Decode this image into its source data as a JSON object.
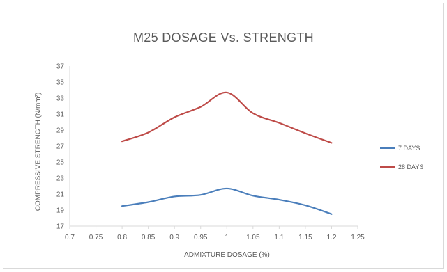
{
  "chart_data": {
    "type": "line",
    "title": "M25 DOSAGE Vs. STRENGTH",
    "xlabel": "ADMIXTURE DOSAGE (%)",
    "ylabel": "COMPRESSIVE STRENGTH (N/mm²)",
    "xlim": [
      0.7,
      1.25
    ],
    "ylim": [
      17,
      37
    ],
    "x_ticks": [
      "0.7",
      "0.75",
      "0.8",
      "0.85",
      "0.9",
      "0.95",
      "1",
      "1.05",
      "1.1",
      "1.15",
      "1.2",
      "1.25"
    ],
    "y_ticks": [
      "17",
      "19",
      "21",
      "23",
      "25",
      "27",
      "29",
      "31",
      "33",
      "35",
      "37"
    ],
    "x": [
      0.8,
      0.85,
      0.9,
      0.95,
      1.0,
      1.05,
      1.1,
      1.15,
      1.2
    ],
    "series": [
      {
        "name": "7 DAYS",
        "color": "#4a7ebb",
        "values": [
          19.5,
          20.0,
          20.7,
          20.9,
          21.7,
          20.8,
          20.3,
          19.6,
          18.5
        ]
      },
      {
        "name": "28 DAYS",
        "color": "#be4b48",
        "values": [
          27.6,
          28.7,
          30.6,
          31.9,
          33.7,
          31.1,
          29.9,
          28.6,
          27.4
        ]
      }
    ],
    "grid": false,
    "smooth": true,
    "legend_position": "right"
  }
}
